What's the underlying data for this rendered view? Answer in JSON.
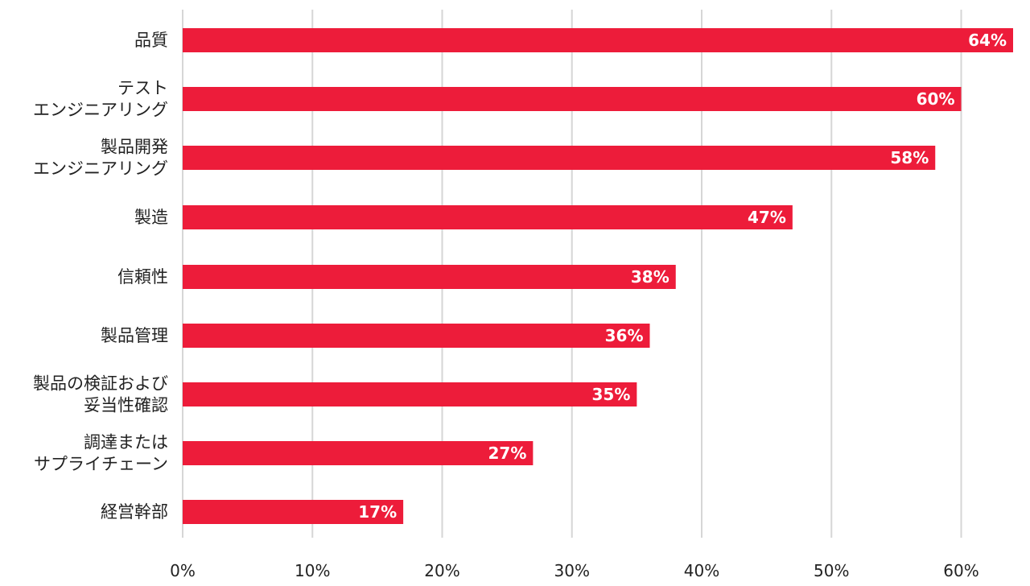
{
  "chart_data": {
    "type": "bar",
    "orientation": "horizontal",
    "categories": [
      [
        "品質"
      ],
      [
        "テスト",
        "エンジニアリング"
      ],
      [
        "製品開発",
        "エンジニアリング"
      ],
      [
        "製造"
      ],
      [
        "信頼性"
      ],
      [
        "製品管理"
      ],
      [
        "製品の検証および",
        "妥当性確認"
      ],
      [
        "調達または",
        "サプライチェーン"
      ],
      [
        "経営幹部"
      ]
    ],
    "values": [
      64,
      60,
      58,
      47,
      38,
      36,
      35,
      27,
      17
    ],
    "value_labels": [
      "64%",
      "60%",
      "58%",
      "47%",
      "38%",
      "36%",
      "35%",
      "27%",
      "17%"
    ],
    "xlim": [
      0,
      64
    ],
    "x_ticks": [
      0,
      10,
      20,
      30,
      40,
      50,
      60
    ],
    "x_tick_labels": [
      "0%",
      "10%",
      "20%",
      "30%",
      "40%",
      "50%",
      "60%"
    ],
    "grid": true,
    "bar_color": "#ed1c3a",
    "value_label_color": "#ffffff",
    "grid_color": "#d6d6d6",
    "text_color": "#222222"
  }
}
